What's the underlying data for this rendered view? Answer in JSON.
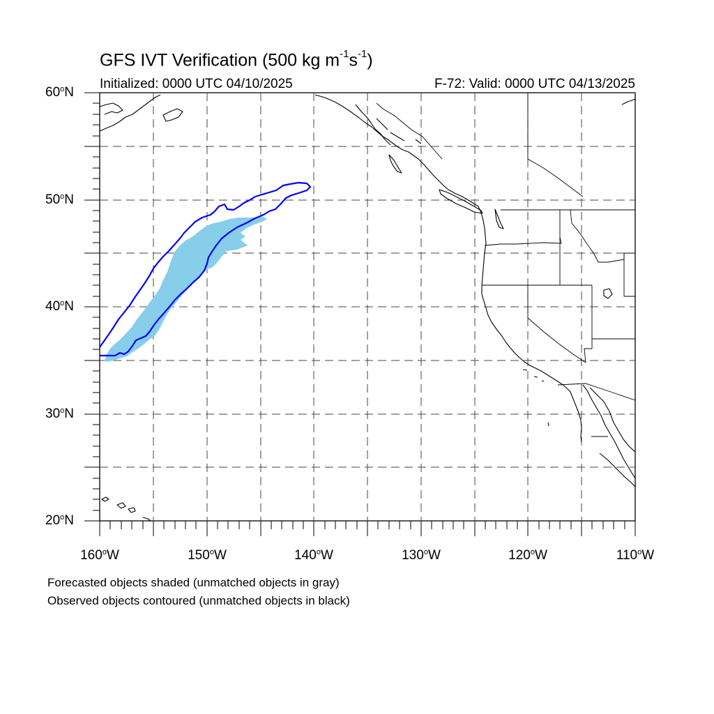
{
  "title": {
    "main": "GFS IVT Verification (500 kg m",
    "exp1": "-1",
    "mid": "s",
    "exp2": "-1",
    "close": ")"
  },
  "init_text": "Initialized: 0000 UTC 04/10/2025",
  "valid_text": "F-72: Valid: 0000 UTC 04/13/2025",
  "lat_labels": [
    {
      "num": "60",
      "deg": "o",
      "hem": "N"
    },
    {
      "num": "50",
      "deg": "o",
      "hem": "N"
    },
    {
      "num": "40",
      "deg": "o",
      "hem": "N"
    },
    {
      "num": "30",
      "deg": "o",
      "hem": "N"
    },
    {
      "num": "20",
      "deg": "o",
      "hem": "N"
    }
  ],
  "lon_labels": [
    {
      "num": "160",
      "deg": "o",
      "hem": "W"
    },
    {
      "num": "150",
      "deg": "o",
      "hem": "W"
    },
    {
      "num": "140",
      "deg": "o",
      "hem": "W"
    },
    {
      "num": "130",
      "deg": "o",
      "hem": "W"
    },
    {
      "num": "120",
      "deg": "o",
      "hem": "W"
    },
    {
      "num": "110",
      "deg": "o",
      "hem": "W"
    }
  ],
  "captions": {
    "forecast": "Forecasted objects shaded (unmatched objects in gray)",
    "observed": "Observed objects contoured (unmatched objects in black)"
  },
  "map": {
    "extent": {
      "lon_min": -160,
      "lon_max": -110,
      "lat_min": 20,
      "lat_max": 60
    },
    "grid_spacing_deg": 5,
    "forecast_fill_color": "#87ceeb",
    "observed_contour_color": "#0000ff",
    "grid_color": "#444444"
  }
}
